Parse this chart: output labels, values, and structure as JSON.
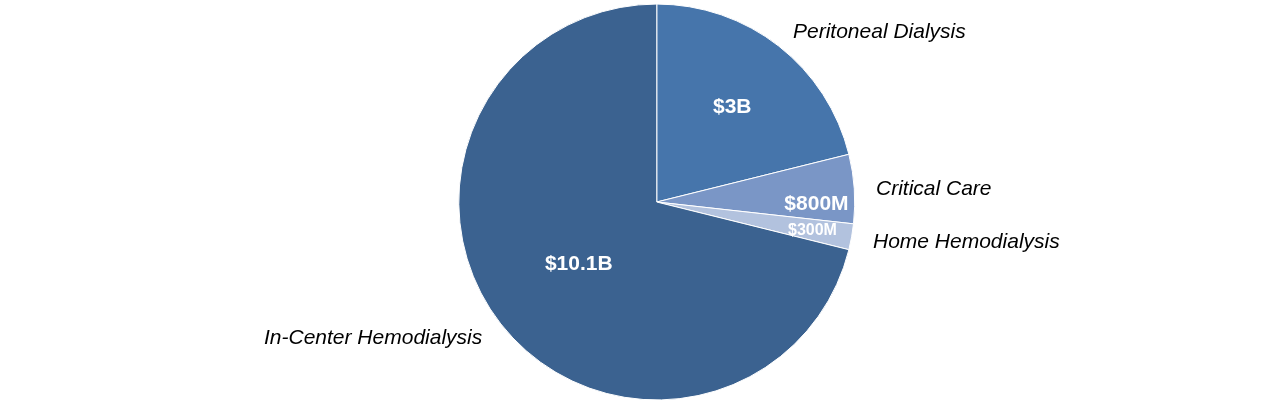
{
  "chart_data": {
    "type": "pie",
    "categories": [
      "Peritoneal Dialysis",
      "Critical Care",
      "Home Hemodialysis",
      "In-Center Hemodialysis"
    ],
    "values": [
      3000000000,
      800000000,
      300000000,
      10100000000
    ],
    "value_labels": [
      "$3B",
      "$800M",
      "$300M",
      "$10.1B"
    ],
    "colors": [
      "#4675ab",
      "#7a96c6",
      "#b2c2de",
      "#3b6290"
    ]
  }
}
